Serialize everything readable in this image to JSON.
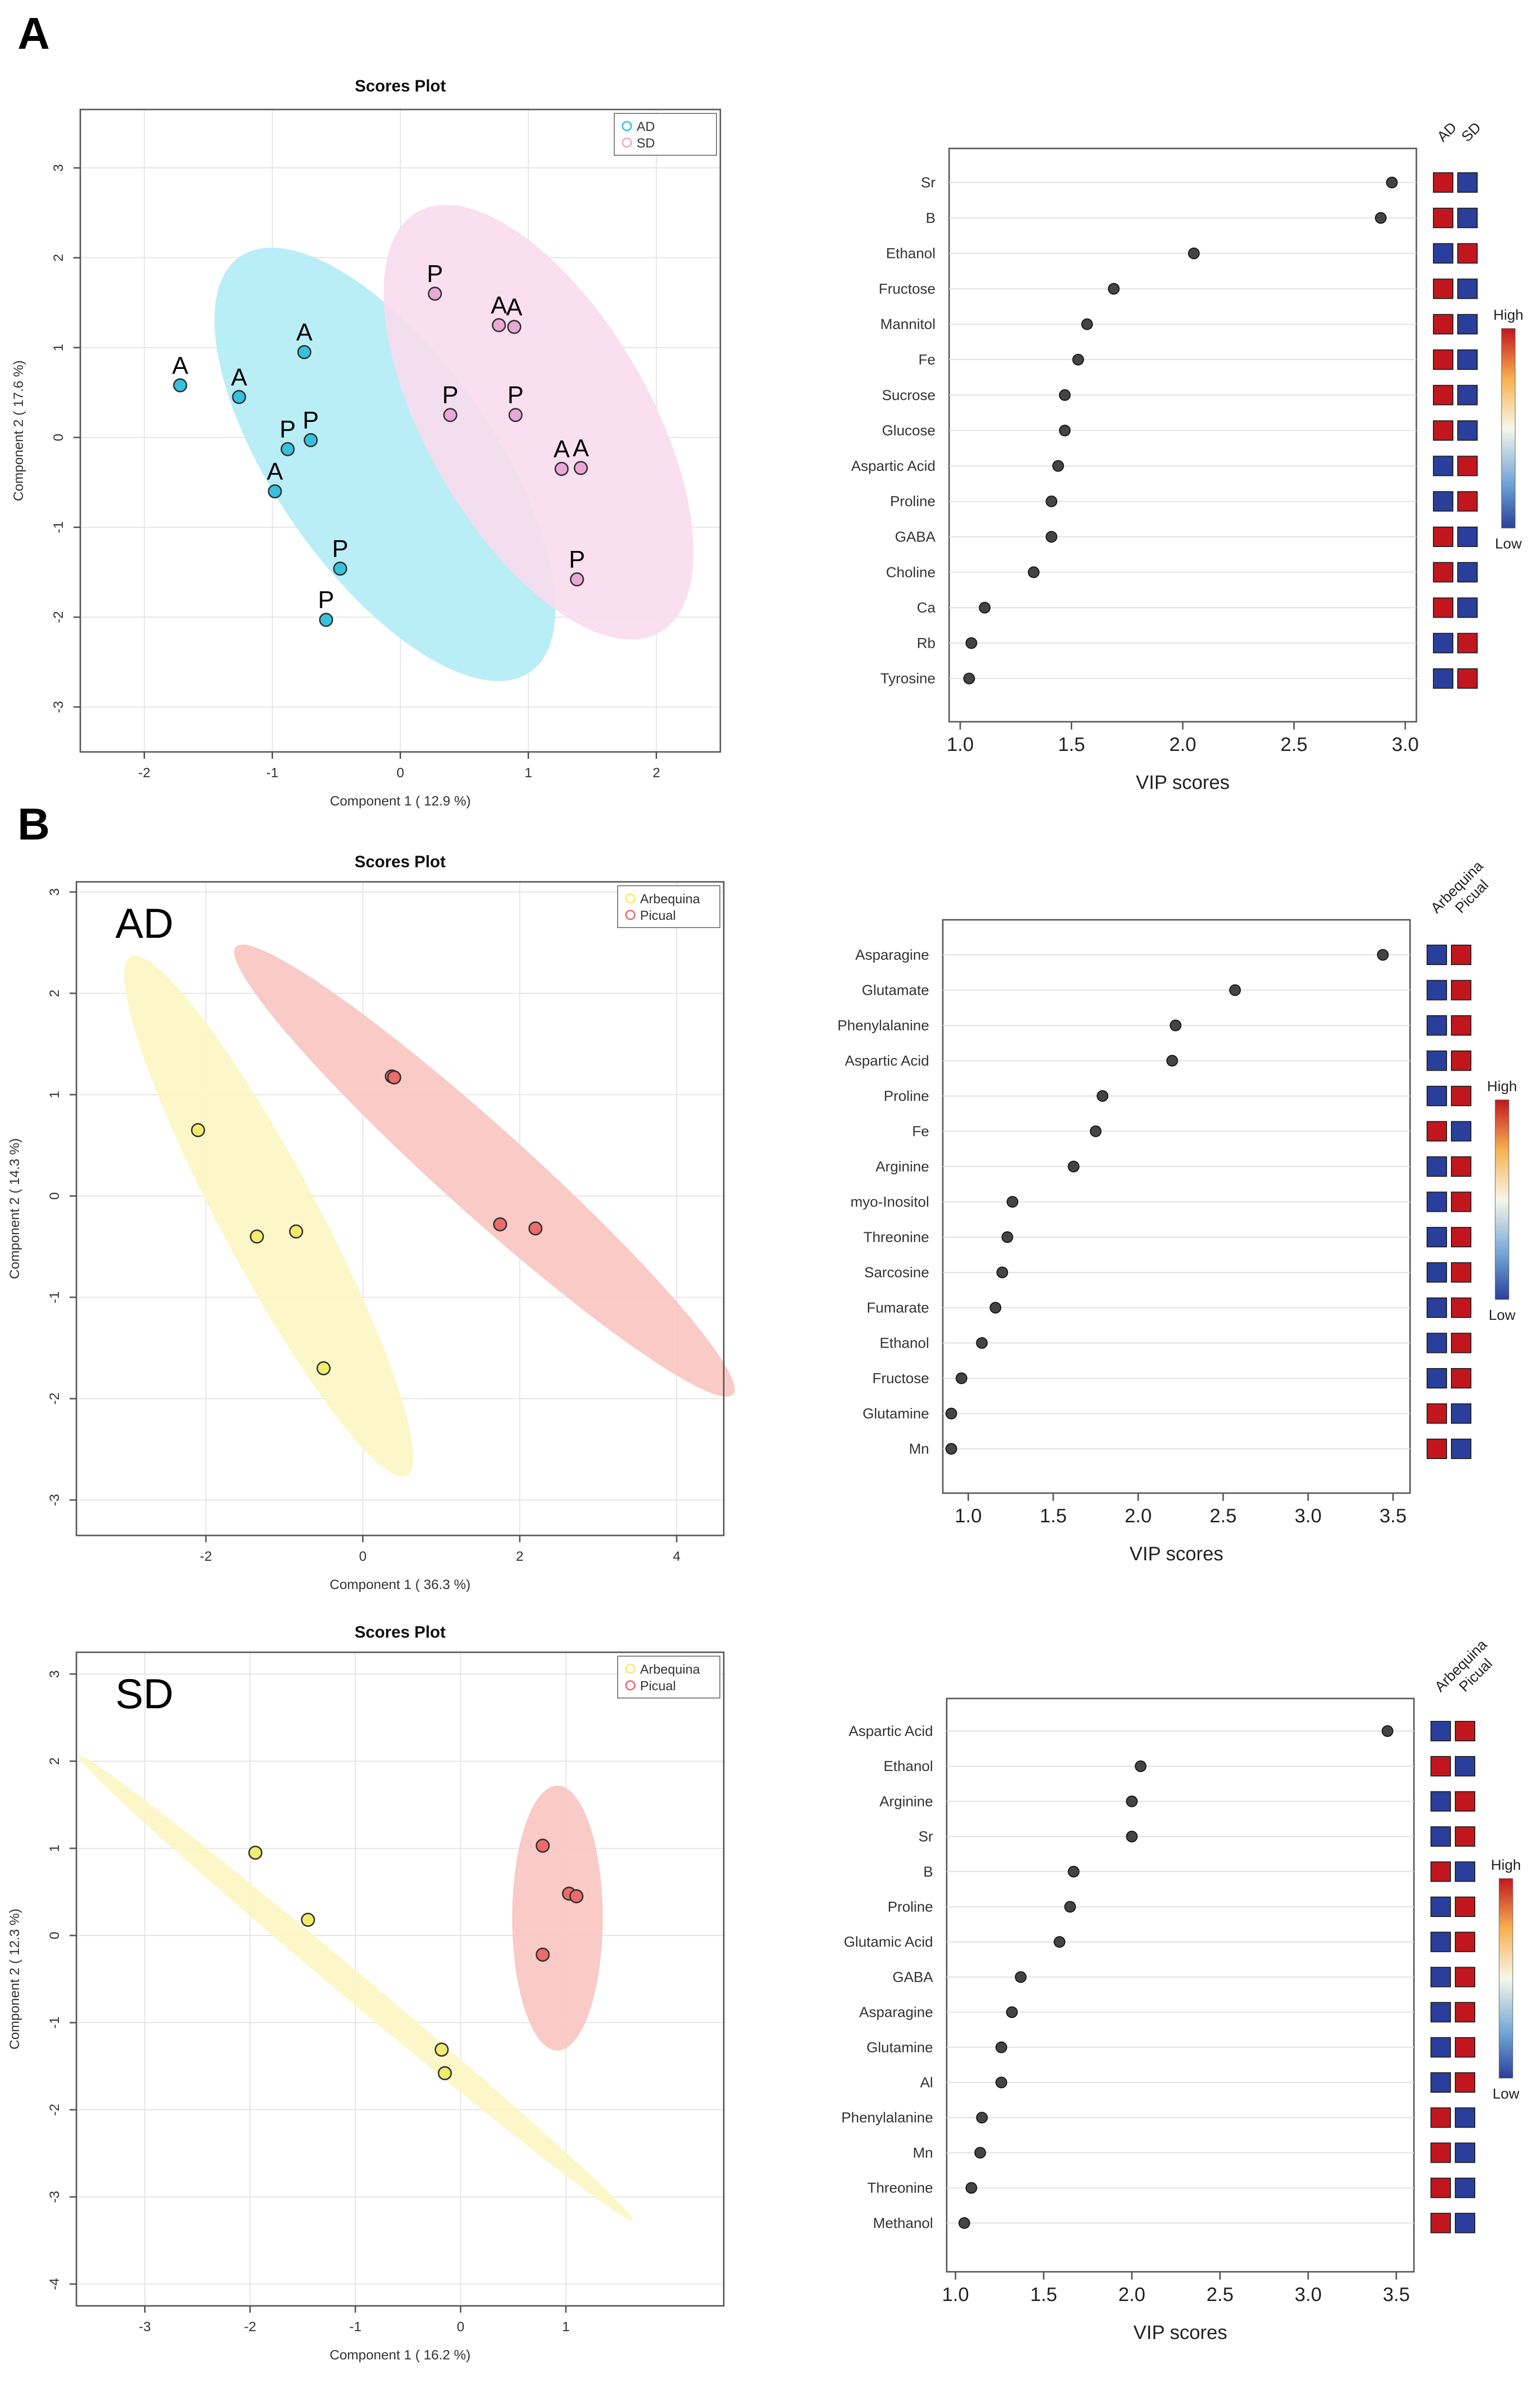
{
  "panels": {
    "A": {
      "letter": "A"
    },
    "B": {
      "letter": "B"
    }
  },
  "colors": {
    "cyan": "#36c2dd",
    "cyan_ellipse": "#b3ecf5",
    "pink": "#e8a9d6",
    "pink_ellipse": "#fadbee",
    "yellow": "#f2ec6e",
    "yellow_ellipse": "#fbf6c2",
    "red": "#ec6b6b",
    "red_ellipse": "#f8c4c0",
    "heat_high": "#c2161e",
    "heat_low": "#2a3f9b"
  },
  "chart_data": [
    {
      "id": "A-scores",
      "type": "scatter",
      "title": "Scores Plot",
      "xlabel": "Component 1 ( 12.9 %)",
      "ylabel": "Component 2 ( 17.6 %)",
      "xlim": [
        -2.5,
        2.5
      ],
      "ylim": [
        -3.5,
        3.65
      ],
      "xticks": [
        -2,
        -1,
        0,
        1,
        2
      ],
      "yticks": [
        -3,
        -2,
        -1,
        0,
        1,
        2,
        3
      ],
      "inset_label": "",
      "legend": {
        "position": "top-right",
        "entries": [
          "AD",
          "SD"
        ]
      },
      "series": [
        {
          "name": "AD",
          "color_key": "cyan",
          "points": [
            {
              "x": -1.72,
              "y": 0.58,
              "label": "A"
            },
            {
              "x": -1.26,
              "y": 0.45,
              "label": "A"
            },
            {
              "x": -0.75,
              "y": 0.95,
              "label": "A"
            },
            {
              "x": -0.98,
              "y": -0.6,
              "label": "A"
            },
            {
              "x": -0.88,
              "y": -0.13,
              "label": "P"
            },
            {
              "x": -0.7,
              "y": -0.03,
              "label": "P"
            },
            {
              "x": -0.47,
              "y": -1.46,
              "label": "P"
            },
            {
              "x": -0.58,
              "y": -2.03,
              "label": "P"
            }
          ],
          "ellipse": {
            "cx": -0.12,
            "cy": -0.3,
            "rx": 0.85,
            "ry": 2.82,
            "angle": -35
          }
        },
        {
          "name": "SD",
          "color_key": "pink",
          "points": [
            {
              "x": 0.27,
              "y": 1.6,
              "label": "P"
            },
            {
              "x": 0.77,
              "y": 1.25,
              "label": "A"
            },
            {
              "x": 0.89,
              "y": 1.23,
              "label": "A"
            },
            {
              "x": 0.39,
              "y": 0.25,
              "label": "P"
            },
            {
              "x": 0.9,
              "y": 0.25,
              "label": "P"
            },
            {
              "x": 1.26,
              "y": -0.35,
              "label": "A"
            },
            {
              "x": 1.41,
              "y": -0.34,
              "label": "A"
            },
            {
              "x": 1.38,
              "y": -1.58,
              "label": "P"
            }
          ],
          "ellipse": {
            "cx": 1.08,
            "cy": 0.17,
            "rx": 0.87,
            "ry": 2.7,
            "angle": -30
          }
        }
      ]
    },
    {
      "id": "A-vip",
      "type": "scatter",
      "xlabel": "VIP scores",
      "xlim": [
        0.95,
        3.05
      ],
      "xticks": [
        1.0,
        1.5,
        2.0,
        2.5,
        3.0
      ],
      "group_labels": [
        "AD",
        "SD"
      ],
      "color_scale": {
        "high": "High",
        "low": "Low"
      },
      "variables": [
        "Sr",
        "B",
        "Ethanol",
        "Fructose",
        "Mannitol",
        "Fe",
        "Sucrose",
        "Glucose",
        "Aspartic Acid",
        "Proline",
        "GABA",
        "Choline",
        "Ca",
        "Rb",
        "Tyrosine"
      ],
      "values": [
        2.94,
        2.89,
        2.05,
        1.69,
        1.57,
        1.53,
        1.47,
        1.47,
        1.44,
        1.41,
        1.41,
        1.33,
        1.11,
        1.05,
        1.04
      ],
      "heatmap": [
        [
          "H",
          "L"
        ],
        [
          "H",
          "L"
        ],
        [
          "L",
          "H"
        ],
        [
          "H",
          "L"
        ],
        [
          "H",
          "L"
        ],
        [
          "H",
          "L"
        ],
        [
          "H",
          "L"
        ],
        [
          "H",
          "L"
        ],
        [
          "L",
          "H"
        ],
        [
          "L",
          "H"
        ],
        [
          "H",
          "L"
        ],
        [
          "H",
          "L"
        ],
        [
          "H",
          "L"
        ],
        [
          "L",
          "H"
        ],
        [
          "L",
          "H"
        ]
      ]
    },
    {
      "id": "B-AD-scores",
      "type": "scatter",
      "title": "Scores Plot",
      "xlabel": "Component 1 ( 36.3 %)",
      "ylabel": "Component 2 ( 14.3 %)",
      "xlim": [
        -3.65,
        4.6
      ],
      "ylim": [
        -3.35,
        3.1
      ],
      "xticks": [
        -2,
        0,
        2,
        4
      ],
      "yticks": [
        -3,
        -2,
        -1,
        0,
        1,
        2,
        3
      ],
      "inset_label": "AD",
      "legend": {
        "position": "top-right",
        "entries": [
          "Arbequina",
          "Picual"
        ]
      },
      "series": [
        {
          "name": "Arbequina",
          "color_key": "yellow",
          "points": [
            {
              "x": -2.1,
              "y": 0.65
            },
            {
              "x": -1.35,
              "y": -0.4
            },
            {
              "x": -0.85,
              "y": -0.35
            },
            {
              "x": -0.5,
              "y": -1.7
            }
          ],
          "ellipse": {
            "cx": -1.2,
            "cy": -0.2,
            "rx": 0.62,
            "ry": 2.9,
            "angle": -28
          }
        },
        {
          "name": "Picual",
          "color_key": "red",
          "points": [
            {
              "x": 0.37,
              "y": 1.18
            },
            {
              "x": 0.4,
              "y": 1.17
            },
            {
              "x": 1.75,
              "y": -0.28
            },
            {
              "x": 2.2,
              "y": -0.32
            }
          ],
          "ellipse": {
            "cx": 1.55,
            "cy": 0.25,
            "rx": 0.55,
            "ry": 3.3,
            "angle": -48
          }
        }
      ]
    },
    {
      "id": "B-AD-vip",
      "type": "scatter",
      "xlabel": "VIP scores",
      "xlim": [
        0.85,
        3.6
      ],
      "xticks": [
        1.0,
        1.5,
        2.0,
        2.5,
        3.0,
        3.5
      ],
      "group_labels": [
        "Arbequina",
        "Picual"
      ],
      "color_scale": {
        "high": "High",
        "low": "Low"
      },
      "variables": [
        "Asparagine",
        "Glutamate",
        "Phenylalanine",
        "Aspartic Acid",
        "Proline",
        "Fe",
        "Arginine",
        "myo-Inositol",
        "Threonine",
        "Sarcosine",
        "Fumarate",
        "Ethanol",
        "Fructose",
        "Glutamine",
        "Mn"
      ],
      "values": [
        3.44,
        2.57,
        2.22,
        2.2,
        1.79,
        1.75,
        1.62,
        1.26,
        1.23,
        1.2,
        1.16,
        1.08,
        0.96,
        0.9,
        0.9
      ],
      "heatmap": [
        [
          "L",
          "H"
        ],
        [
          "L",
          "H"
        ],
        [
          "L",
          "H"
        ],
        [
          "L",
          "H"
        ],
        [
          "L",
          "H"
        ],
        [
          "H",
          "L"
        ],
        [
          "L",
          "H"
        ],
        [
          "L",
          "H"
        ],
        [
          "L",
          "H"
        ],
        [
          "L",
          "H"
        ],
        [
          "L",
          "H"
        ],
        [
          "L",
          "H"
        ],
        [
          "L",
          "H"
        ],
        [
          "H",
          "L"
        ],
        [
          "H",
          "L"
        ]
      ]
    },
    {
      "id": "B-SD-scores",
      "type": "scatter",
      "title": "Scores Plot",
      "xlabel": "Component 1 ( 16.2 %)",
      "ylabel": "Component 2 ( 12.3 %)",
      "xlim": [
        -3.65,
        2.5
      ],
      "ylim": [
        -4.25,
        3.25
      ],
      "xticks": [
        -3,
        -2,
        -1,
        0,
        1
      ],
      "yticks": [
        -4,
        -3,
        -2,
        -1,
        0,
        1,
        2,
        3
      ],
      "inset_label": "SD",
      "legend": {
        "position": "top-right",
        "entries": [
          "Arbequina",
          "Picual"
        ]
      },
      "series": [
        {
          "name": "Arbequina",
          "color_key": "yellow",
          "points": [
            {
              "x": -1.95,
              "y": 0.95
            },
            {
              "x": -1.45,
              "y": 0.18
            },
            {
              "x": -0.18,
              "y": -1.31
            },
            {
              "x": -0.15,
              "y": -1.58
            }
          ],
          "ellipse": {
            "cx": -1.0,
            "cy": -0.6,
            "rx": 0.13,
            "ry": 4.15,
            "angle": -50
          }
        },
        {
          "name": "Picual",
          "color_key": "red",
          "points": [
            {
              "x": 0.78,
              "y": 1.03
            },
            {
              "x": 1.03,
              "y": 0.48
            },
            {
              "x": 1.1,
              "y": 0.45
            },
            {
              "x": 0.78,
              "y": -0.22
            }
          ],
          "ellipse": {
            "cx": 0.92,
            "cy": 0.2,
            "rx": 0.43,
            "ry": 1.52,
            "angle": 0
          }
        }
      ]
    },
    {
      "id": "B-SD-vip",
      "type": "scatter",
      "xlabel": "VIP scores",
      "xlim": [
        0.95,
        3.6
      ],
      "xticks": [
        1.0,
        1.5,
        2.0,
        2.5,
        3.0,
        3.5
      ],
      "group_labels": [
        "Arbequina",
        "Picual"
      ],
      "color_scale": {
        "high": "High",
        "low": "Low"
      },
      "variables": [
        "Aspartic Acid",
        "Ethanol",
        "Arginine",
        "Sr",
        "B",
        "Proline",
        "Glutamic Acid",
        "GABA",
        "Asparagine",
        "Glutamine",
        "Al",
        "Phenylalanine",
        "Mn",
        "Threonine",
        "Methanol"
      ],
      "values": [
        3.45,
        2.05,
        2.0,
        2.0,
        1.67,
        1.65,
        1.59,
        1.37,
        1.32,
        1.26,
        1.26,
        1.15,
        1.14,
        1.09,
        1.05
      ],
      "heatmap": [
        [
          "L",
          "H"
        ],
        [
          "H",
          "L"
        ],
        [
          "L",
          "H"
        ],
        [
          "L",
          "H"
        ],
        [
          "H",
          "L"
        ],
        [
          "L",
          "H"
        ],
        [
          "L",
          "H"
        ],
        [
          "L",
          "H"
        ],
        [
          "L",
          "H"
        ],
        [
          "L",
          "H"
        ],
        [
          "L",
          "H"
        ],
        [
          "H",
          "L"
        ],
        [
          "H",
          "L"
        ],
        [
          "H",
          "L"
        ],
        [
          "H",
          "L"
        ]
      ]
    }
  ]
}
